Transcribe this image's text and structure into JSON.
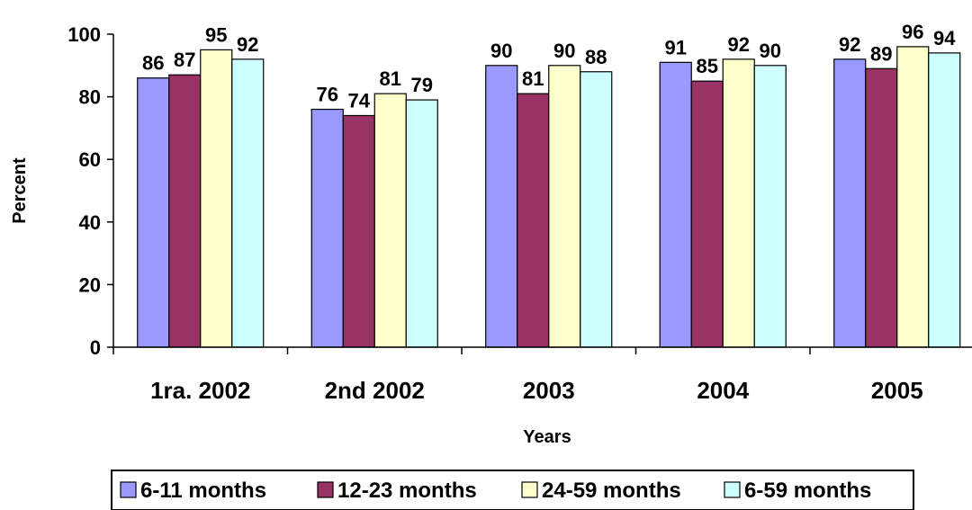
{
  "chart_data": {
    "type": "bar",
    "categories": [
      "1ra. 2002",
      "2nd 2002",
      "2003",
      "2004",
      "2005"
    ],
    "series": [
      {
        "name": "6-11 months",
        "color": "#9999FF",
        "values": [
          86,
          76,
          90,
          91,
          92
        ]
      },
      {
        "name": "12-23 months",
        "color": "#993366",
        "values": [
          87,
          74,
          81,
          85,
          89
        ]
      },
      {
        "name": "24-59 months",
        "color": "#FFFFCC",
        "values": [
          95,
          81,
          90,
          92,
          96
        ]
      },
      {
        "name": "6-59 months",
        "color": "#CCFFFF",
        "values": [
          92,
          79,
          88,
          90,
          94
        ]
      }
    ],
    "xlabel": "Years",
    "ylabel": "Percent",
    "ylim": [
      0,
      100
    ],
    "yticks": [
      0,
      20,
      40,
      60,
      80,
      100
    ],
    "grid": false,
    "legend": "bottom"
  }
}
